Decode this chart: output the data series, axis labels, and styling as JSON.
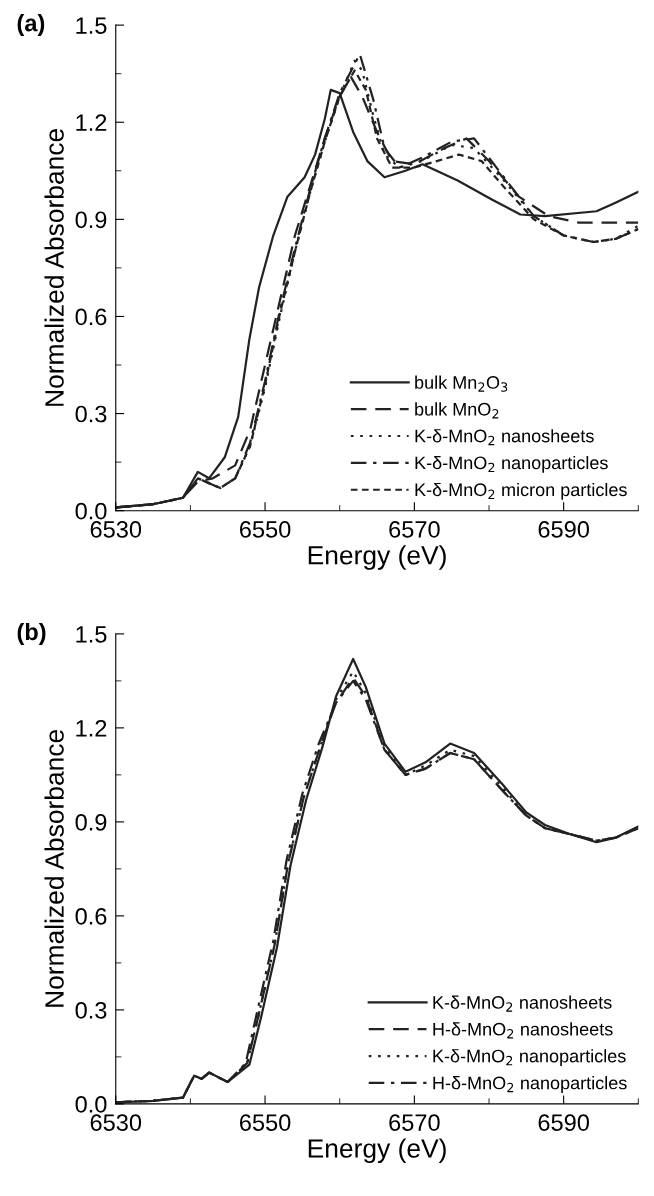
{
  "chart_data": [
    {
      "type": "line",
      "annotations": [
        "(a)"
      ],
      "xlabel": "Energy (eV)",
      "ylabel": "Normalized Absorbance",
      "xlim": [
        6530,
        6600
      ],
      "xticks": [
        6530,
        6550,
        6570,
        6590
      ],
      "ylim": [
        0,
        1.5
      ],
      "yticks": [
        {
          "value": 0,
          "label": "0.0"
        },
        0.3,
        0.6,
        0.9,
        1.2,
        1.5
      ],
      "legend": "bottom right",
      "grid": false,
      "series": [
        {
          "name": "bulk Mn$_{2}$O$_{3}$",
          "color": "#222222",
          "line_style": "solid",
          "x": [
            6530,
            6535,
            6539,
            6540,
            6541,
            6542.5,
            6544.6,
            6546.4,
            6547.9,
            6549.2,
            6551.1,
            6553,
            6555.3,
            6556.7,
            6558,
            6558.8,
            6560,
            6561.8,
            6563.7,
            6566,
            6568.8,
            6571.1,
            6575.8,
            6580.5,
            6584.2,
            6587.5,
            6594.4,
            6596.8,
            6600
          ],
          "values": [
            0.01,
            0.02,
            0.04,
            0.08,
            0.12,
            0.1,
            0.165,
            0.29,
            0.53,
            0.69,
            0.85,
            0.97,
            1.03,
            1.1,
            1.21,
            1.3,
            1.29,
            1.17,
            1.08,
            1.03,
            1.05,
            1.07,
            1.02,
            0.96,
            0.915,
            0.91,
            0.925,
            0.95,
            0.985
          ]
        },
        {
          "name": "bulk MnO$_{2}$",
          "color": "#222222",
          "line_style": "dashed",
          "x": [
            6530,
            6535,
            6539,
            6541,
            6543,
            6546,
            6548,
            6550,
            6552,
            6554,
            6556,
            6558,
            6560,
            6561.5,
            6563,
            6565,
            6567,
            6570,
            6574,
            6577,
            6580,
            6584,
            6588,
            6592,
            6596,
            6600
          ],
          "values": [
            0.01,
            0.02,
            0.04,
            0.09,
            0.1,
            0.14,
            0.25,
            0.45,
            0.65,
            0.85,
            1.0,
            1.15,
            1.28,
            1.34,
            1.28,
            1.17,
            1.08,
            1.07,
            1.12,
            1.15,
            1.08,
            0.97,
            0.91,
            0.89,
            0.89,
            0.89
          ]
        },
        {
          "name": "K-δ-MnO$_{2}$ nanosheets",
          "color": "#222222",
          "line_style": "dotted",
          "x": [
            6530,
            6535,
            6539,
            6541,
            6544,
            6546,
            6548,
            6550,
            6552,
            6554,
            6556,
            6558,
            6560,
            6562,
            6563,
            6564.5,
            6566,
            6568,
            6571,
            6575,
            6578,
            6582,
            6586,
            6590,
            6594,
            6597,
            6600
          ],
          "values": [
            0.01,
            0.02,
            0.04,
            0.1,
            0.07,
            0.1,
            0.2,
            0.38,
            0.6,
            0.8,
            0.98,
            1.14,
            1.28,
            1.39,
            1.36,
            1.22,
            1.1,
            1.06,
            1.08,
            1.13,
            1.12,
            1.02,
            0.91,
            0.85,
            0.83,
            0.84,
            0.88
          ]
        },
        {
          "name": "K-δ-MnO$_{2}$ nanoparticles",
          "color": "#222222",
          "line_style": "dashdot",
          "x": [
            6530,
            6535,
            6539,
            6541,
            6544,
            6546,
            6548,
            6550,
            6552,
            6554,
            6556,
            6558,
            6560,
            6562,
            6562.7,
            6564.5,
            6566,
            6568,
            6571,
            6575,
            6578,
            6582,
            6586,
            6590,
            6594,
            6597,
            6600
          ],
          "values": [
            0.01,
            0.02,
            0.04,
            0.1,
            0.07,
            0.1,
            0.21,
            0.4,
            0.62,
            0.81,
            0.99,
            1.15,
            1.29,
            1.38,
            1.41,
            1.27,
            1.12,
            1.06,
            1.09,
            1.14,
            1.15,
            1.03,
            0.91,
            0.85,
            0.83,
            0.84,
            0.87
          ]
        },
        {
          "name": "K-δ-MnO$_{2}$ micron particles",
          "color": "#222222",
          "line_style": "shortdashed",
          "x": [
            6530,
            6535,
            6539,
            6541,
            6544,
            6546,
            6548,
            6550,
            6552,
            6554,
            6556,
            6558,
            6560,
            6562,
            6563.5,
            6565,
            6567,
            6570,
            6573,
            6576,
            6579,
            6582,
            6586,
            6590,
            6594,
            6597,
            6600
          ],
          "values": [
            0.01,
            0.02,
            0.04,
            0.1,
            0.07,
            0.1,
            0.2,
            0.39,
            0.61,
            0.8,
            0.98,
            1.14,
            1.28,
            1.36,
            1.3,
            1.15,
            1.06,
            1.06,
            1.08,
            1.1,
            1.08,
            1.0,
            0.9,
            0.85,
            0.83,
            0.84,
            0.87
          ]
        }
      ]
    },
    {
      "type": "line",
      "annotations": [
        "(b)"
      ],
      "xlabel": "Energy (eV)",
      "ylabel": "Normalized Absorbance",
      "xlim": [
        6530,
        6600
      ],
      "xticks": [
        6530,
        6550,
        6570,
        6590
      ],
      "ylim": [
        0,
        1.5
      ],
      "yticks": [
        {
          "value": 0,
          "label": "0.0"
        },
        0.3,
        0.6,
        0.9,
        1.2,
        1.5
      ],
      "legend": "bottom right",
      "grid": false,
      "series": [
        {
          "name": "K-δ-MnO$_{2}$ nanosheets",
          "color": "#222222",
          "line_style": "solid",
          "x": [
            6530,
            6535,
            6539,
            6540.5,
            6541.5,
            6542.5,
            6545,
            6547.9,
            6549.5,
            6551.6,
            6553.4,
            6555.5,
            6557.7,
            6559.5,
            6561.8,
            6563.5,
            6566,
            6568.8,
            6571.5,
            6574.8,
            6578,
            6581.8,
            6585,
            6587.5,
            6591,
            6594.4,
            6597,
            6600
          ],
          "values": [
            0.005,
            0.01,
            0.02,
            0.09,
            0.08,
            0.1,
            0.07,
            0.125,
            0.28,
            0.5,
            0.76,
            0.97,
            1.14,
            1.3,
            1.42,
            1.33,
            1.15,
            1.06,
            1.09,
            1.15,
            1.12,
            1.02,
            0.93,
            0.89,
            0.86,
            0.835,
            0.85,
            0.885
          ]
        },
        {
          "name": "H-δ-MnO$_{2}$ nanosheets",
          "color": "#222222",
          "line_style": "dashed",
          "x": [
            6530,
            6535,
            6539,
            6540.5,
            6541.5,
            6542.5,
            6545,
            6547.6,
            6549.2,
            6551.3,
            6553.1,
            6555.2,
            6557.4,
            6559.5,
            6561.8,
            6563.5,
            6566,
            6568.8,
            6571.5,
            6574.8,
            6578,
            6581.8,
            6585,
            6587.5,
            6591,
            6594.4,
            6597,
            6600
          ],
          "values": [
            0.005,
            0.01,
            0.02,
            0.09,
            0.08,
            0.1,
            0.07,
            0.13,
            0.29,
            0.51,
            0.77,
            0.98,
            1.14,
            1.28,
            1.36,
            1.3,
            1.13,
            1.05,
            1.07,
            1.12,
            1.1,
            1.0,
            0.92,
            0.88,
            0.86,
            0.84,
            0.85,
            0.88
          ]
        },
        {
          "name": "K-δ-MnO$_{2}$ nanoparticles",
          "color": "#222222",
          "line_style": "dotted",
          "x": [
            6530,
            6535,
            6539,
            6540.5,
            6541.5,
            6542.5,
            6545,
            6547.6,
            6549.2,
            6551.3,
            6553.1,
            6555.2,
            6557.4,
            6559.5,
            6561.8,
            6563.5,
            6566,
            6568.8,
            6571.5,
            6574.8,
            6578,
            6581.8,
            6585,
            6587.5,
            6591,
            6594.4,
            6597,
            6600
          ],
          "values": [
            0.005,
            0.01,
            0.02,
            0.09,
            0.08,
            0.1,
            0.07,
            0.13,
            0.29,
            0.51,
            0.77,
            0.98,
            1.14,
            1.29,
            1.38,
            1.31,
            1.14,
            1.05,
            1.08,
            1.13,
            1.11,
            1.01,
            0.92,
            0.88,
            0.86,
            0.84,
            0.85,
            0.88
          ]
        },
        {
          "name": "H-δ-MnO$_{2}$ nanoparticles",
          "color": "#222222",
          "line_style": "dashdot",
          "x": [
            6530,
            6535,
            6539,
            6540.5,
            6541.5,
            6542.5,
            6545,
            6547.4,
            6549,
            6551.1,
            6552.9,
            6555,
            6557.2,
            6559.5,
            6561.8,
            6563.5,
            6566,
            6568.8,
            6571.5,
            6574.8,
            6578,
            6581.8,
            6585,
            6587.5,
            6591,
            6594.4,
            6597,
            6600
          ],
          "values": [
            0.005,
            0.01,
            0.02,
            0.09,
            0.08,
            0.1,
            0.07,
            0.13,
            0.3,
            0.52,
            0.78,
            0.99,
            1.15,
            1.28,
            1.35,
            1.29,
            1.13,
            1.05,
            1.07,
            1.12,
            1.1,
            1.0,
            0.92,
            0.88,
            0.86,
            0.84,
            0.85,
            0.88
          ]
        }
      ]
    }
  ]
}
